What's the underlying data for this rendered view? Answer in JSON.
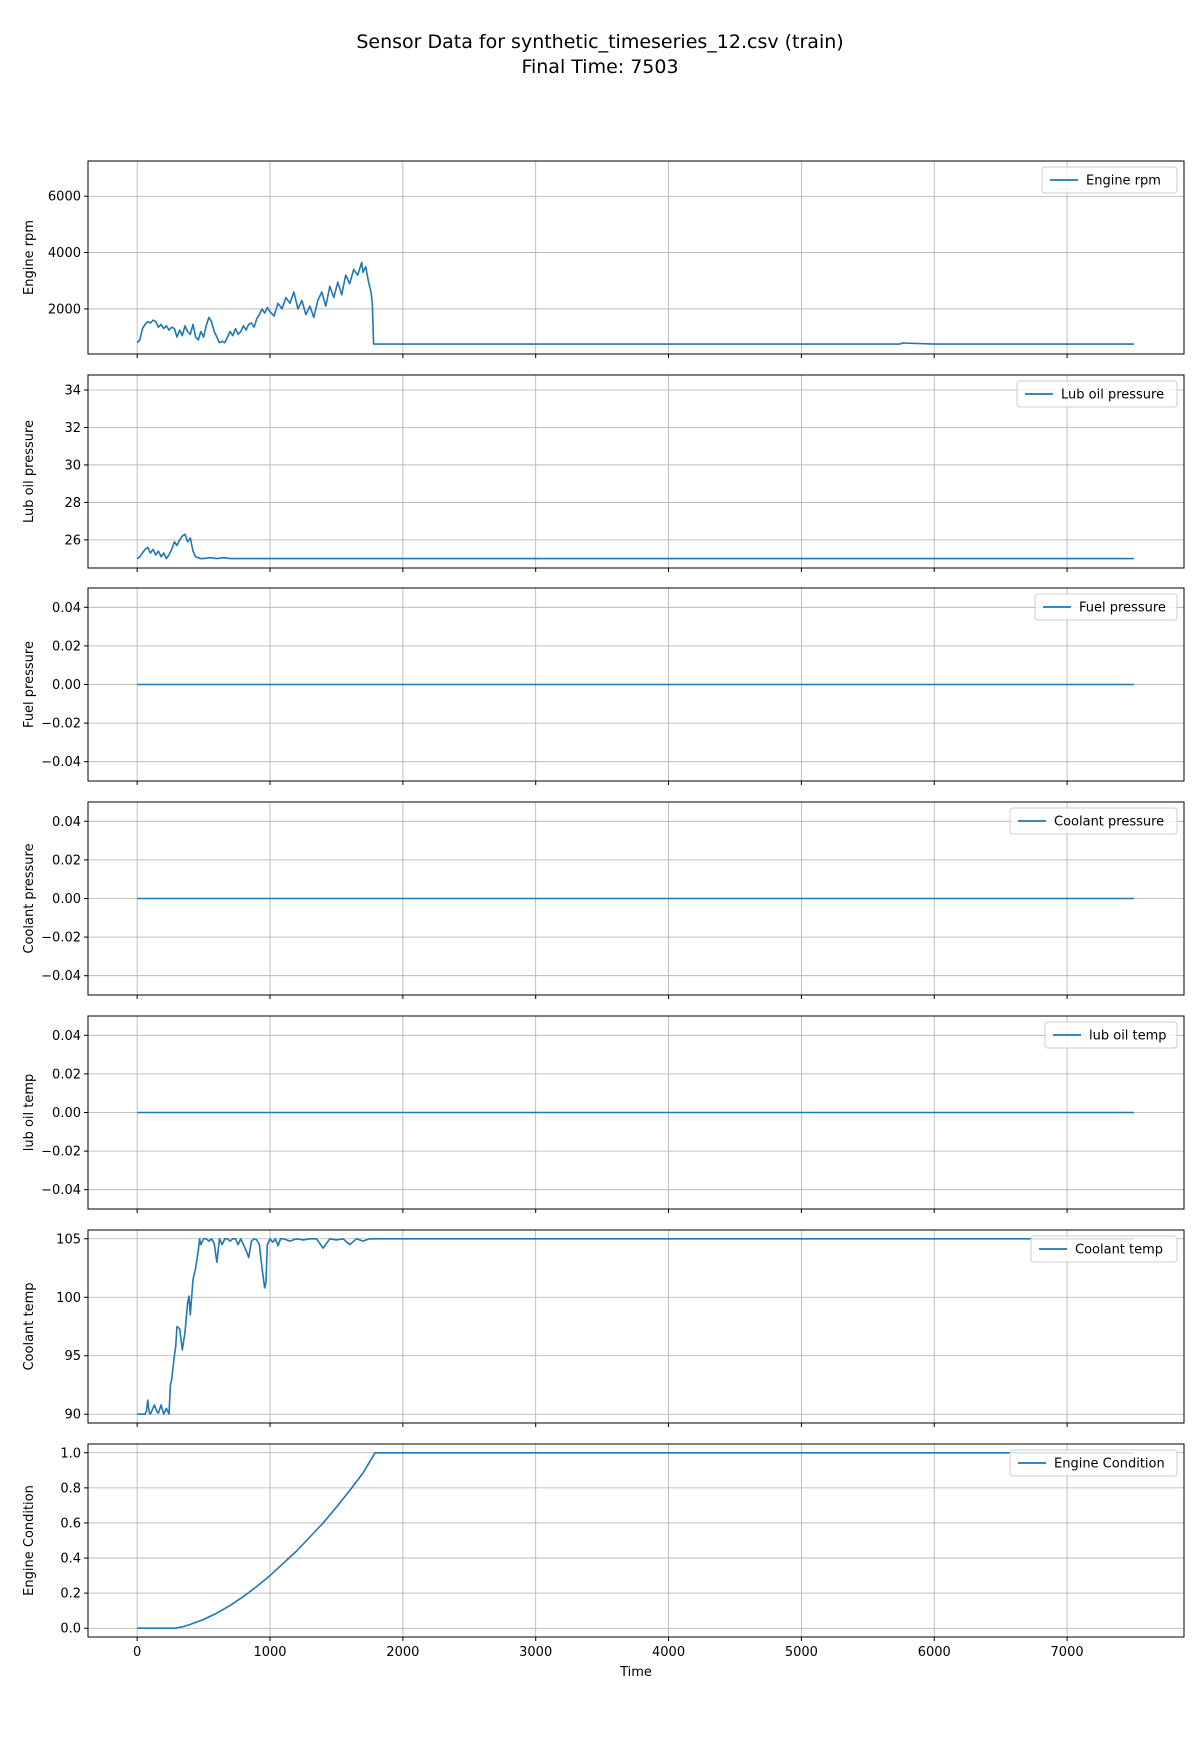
{
  "title": {
    "line1": "Sensor Data for synthetic_timeseries_12.csv (train)",
    "line2": "Final Time: 7503"
  },
  "chart_data": [
    {
      "type": "line",
      "ylabel": "Engine rpm",
      "xlim": [
        -370,
        7880
      ],
      "ylim": [
        400,
        7250
      ],
      "yticks": [
        2000,
        4000,
        6000
      ],
      "ytick_labels": [
        "2000",
        "4000",
        "6000"
      ],
      "grid": true,
      "legend_position": "upper right",
      "series": [
        {
          "name": "Engine rpm",
          "color": "#1f77b4",
          "x": [
            0,
            20,
            40,
            60,
            80,
            100,
            120,
            140,
            160,
            180,
            200,
            220,
            240,
            260,
            280,
            300,
            320,
            340,
            360,
            380,
            400,
            420,
            440,
            460,
            480,
            500,
            520,
            540,
            560,
            580,
            600,
            620,
            640,
            660,
            680,
            700,
            720,
            740,
            760,
            780,
            800,
            820,
            840,
            860,
            880,
            900,
            920,
            940,
            960,
            980,
            1000,
            1030,
            1060,
            1090,
            1120,
            1150,
            1180,
            1210,
            1240,
            1270,
            1300,
            1330,
            1360,
            1390,
            1420,
            1450,
            1480,
            1510,
            1540,
            1570,
            1600,
            1630,
            1660,
            1690,
            1700,
            1720,
            1740,
            1760,
            1770,
            1780,
            1800,
            2000,
            2500,
            3000,
            3500,
            4000,
            4500,
            5000,
            5500,
            5740,
            5760,
            6000,
            6500,
            7000,
            7503
          ],
          "values": [
            800,
            900,
            1300,
            1450,
            1550,
            1500,
            1600,
            1550,
            1350,
            1450,
            1300,
            1400,
            1250,
            1350,
            1300,
            1000,
            1250,
            1050,
            1400,
            1200,
            1100,
            1450,
            1000,
            900,
            1200,
            1000,
            1400,
            1700,
            1550,
            1200,
            1000,
            800,
            850,
            800,
            1000,
            1200,
            1050,
            1300,
            1100,
            1200,
            1400,
            1250,
            1450,
            1500,
            1350,
            1650,
            1800,
            2000,
            1850,
            2050,
            1900,
            1750,
            2200,
            2000,
            2400,
            2200,
            2600,
            2000,
            2300,
            1800,
            2100,
            1700,
            2300,
            2600,
            2100,
            2800,
            2400,
            2950,
            2500,
            3200,
            2900,
            3400,
            3200,
            3650,
            3300,
            3500,
            3000,
            2600,
            2200,
            750,
            750,
            750,
            750,
            750,
            750,
            750,
            750,
            750,
            750,
            750,
            790,
            750,
            750,
            750,
            750
          ]
        }
      ]
    },
    {
      "type": "line",
      "ylabel": "Lub oil pressure",
      "xlim": [
        -370,
        7880
      ],
      "ylim": [
        24.5,
        34.8
      ],
      "yticks": [
        26,
        28,
        30,
        32,
        34
      ],
      "ytick_labels": [
        "26",
        "28",
        "30",
        "32",
        "34"
      ],
      "grid": true,
      "legend_position": "upper right",
      "series": [
        {
          "name": "Lub oil pressure",
          "color": "#1f77b4",
          "x": [
            0,
            20,
            40,
            60,
            80,
            100,
            120,
            140,
            160,
            180,
            200,
            220,
            240,
            260,
            280,
            300,
            320,
            340,
            360,
            380,
            400,
            420,
            440,
            460,
            480,
            500,
            550,
            600,
            650,
            700,
            1000,
            2000,
            3000,
            4000,
            5000,
            6000,
            7000,
            7503
          ],
          "values": [
            25.0,
            25.1,
            25.3,
            25.5,
            25.6,
            25.3,
            25.5,
            25.2,
            25.4,
            25.1,
            25.3,
            25.0,
            25.2,
            25.5,
            25.9,
            25.7,
            26.0,
            26.2,
            26.3,
            25.9,
            26.1,
            25.4,
            25.1,
            25.05,
            25.0,
            25.0,
            25.05,
            25.0,
            25.05,
            25.0,
            25.0,
            25.0,
            25.0,
            25.0,
            25.0,
            25.0,
            25.0,
            25.0
          ]
        }
      ]
    },
    {
      "type": "line",
      "ylabel": "Fuel pressure",
      "xlim": [
        -370,
        7880
      ],
      "ylim": [
        -0.05,
        0.05
      ],
      "yticks": [
        -0.04,
        -0.02,
        0.0,
        0.02,
        0.04
      ],
      "ytick_labels": [
        "−0.04",
        "−0.02",
        "0.00",
        "0.02",
        "0.04"
      ],
      "grid": true,
      "legend_position": "upper right",
      "series": [
        {
          "name": "Fuel pressure",
          "color": "#1f77b4",
          "x": [
            0,
            7503
          ],
          "values": [
            0,
            0
          ]
        }
      ]
    },
    {
      "type": "line",
      "ylabel": "Coolant pressure",
      "xlim": [
        -370,
        7880
      ],
      "ylim": [
        -0.05,
        0.05
      ],
      "yticks": [
        -0.04,
        -0.02,
        0.0,
        0.02,
        0.04
      ],
      "ytick_labels": [
        "−0.04",
        "−0.02",
        "0.00",
        "0.02",
        "0.04"
      ],
      "grid": true,
      "legend_position": "upper right",
      "series": [
        {
          "name": "Coolant pressure",
          "color": "#1f77b4",
          "x": [
            0,
            7503
          ],
          "values": [
            0,
            0
          ]
        }
      ]
    },
    {
      "type": "line",
      "ylabel": "lub oil temp",
      "xlim": [
        -370,
        7880
      ],
      "ylim": [
        -0.05,
        0.05
      ],
      "yticks": [
        -0.04,
        -0.02,
        0.0,
        0.02,
        0.04
      ],
      "ytick_labels": [
        "−0.04",
        "−0.02",
        "0.00",
        "0.02",
        "0.04"
      ],
      "grid": true,
      "legend_position": "upper right",
      "series": [
        {
          "name": "lub oil temp",
          "color": "#1f77b4",
          "x": [
            0,
            7503
          ],
          "values": [
            0,
            0
          ]
        }
      ]
    },
    {
      "type": "line",
      "ylabel": "Coolant temp",
      "xlim": [
        -370,
        7880
      ],
      "ylim": [
        89.25,
        105.75
      ],
      "yticks": [
        90,
        95,
        100,
        105
      ],
      "ytick_labels": [
        "90",
        "95",
        "100",
        "105"
      ],
      "grid": true,
      "legend_position": "upper right",
      "series": [
        {
          "name": "Coolant temp",
          "color": "#1f77b4",
          "x": [
            0,
            60,
            70,
            80,
            90,
            100,
            130,
            150,
            160,
            180,
            200,
            220,
            240,
            250,
            260,
            280,
            290,
            300,
            320,
            340,
            360,
            380,
            390,
            400,
            420,
            440,
            460,
            470,
            480,
            500,
            520,
            540,
            560,
            580,
            600,
            620,
            640,
            660,
            680,
            700,
            720,
            740,
            760,
            780,
            800,
            820,
            840,
            860,
            880,
            900,
            920,
            940,
            960,
            970,
            980,
            1000,
            1020,
            1040,
            1060,
            1080,
            1100,
            1150,
            1200,
            1250,
            1300,
            1350,
            1400,
            1450,
            1500,
            1550,
            1600,
            1650,
            1700,
            1750,
            1800,
            2000,
            3000,
            4000,
            5000,
            6000,
            7000,
            7503
          ],
          "values": [
            90,
            90,
            90.3,
            91.2,
            90.2,
            90,
            90.8,
            90.2,
            90.1,
            90.8,
            90,
            90.5,
            90,
            92.5,
            93,
            95,
            95.8,
            97.5,
            97.3,
            95.5,
            97.0,
            99.5,
            100.1,
            98.5,
            101.5,
            102.5,
            104,
            105,
            104.5,
            105,
            105,
            104.8,
            105,
            104.6,
            103.0,
            105,
            104.5,
            105,
            105,
            104.8,
            105,
            105,
            104.5,
            105,
            104.5,
            104.0,
            103.4,
            104.8,
            105,
            104.9,
            104.5,
            102.5,
            100.8,
            101.3,
            104.5,
            105,
            104.7,
            105,
            104.4,
            105,
            105,
            104.8,
            105,
            104.9,
            105,
            105,
            104.2,
            105,
            104.9,
            105,
            104.5,
            105,
            104.8,
            105,
            105,
            105,
            105,
            105,
            105,
            105,
            105,
            105
          ]
        }
      ]
    },
    {
      "type": "line",
      "ylabel": "Engine Condition",
      "xlim": [
        -370,
        7880
      ],
      "ylim": [
        -0.05,
        1.05
      ],
      "yticks": [
        0.0,
        0.2,
        0.4,
        0.6,
        0.8,
        1.0
      ],
      "ytick_labels": [
        "0.0",
        "0.2",
        "0.4",
        "0.6",
        "0.8",
        "1.0"
      ],
      "grid": true,
      "legend_position": "upper right",
      "series": [
        {
          "name": "Engine Condition",
          "color": "#1f77b4",
          "x": [
            0,
            100,
            200,
            290,
            350,
            400,
            500,
            600,
            700,
            800,
            900,
            1000,
            1100,
            1200,
            1300,
            1400,
            1500,
            1600,
            1700,
            1790,
            1800,
            2500,
            3500,
            4500,
            5500,
            6500,
            7503
          ],
          "values": [
            0,
            0,
            0,
            0,
            0.01,
            0.022,
            0.05,
            0.086,
            0.13,
            0.18,
            0.238,
            0.3,
            0.37,
            0.44,
            0.52,
            0.6,
            0.69,
            0.785,
            0.885,
            1.0,
            1.0,
            1.0,
            1.0,
            1.0,
            1.0,
            1.0,
            1.0
          ]
        }
      ]
    }
  ],
  "x_axis": {
    "label": "Time",
    "ticks": [
      0,
      1000,
      2000,
      3000,
      4000,
      5000,
      6000,
      7000
    ],
    "tick_labels": [
      "0",
      "1000",
      "2000",
      "3000",
      "4000",
      "5000",
      "6000",
      "7000"
    ]
  }
}
